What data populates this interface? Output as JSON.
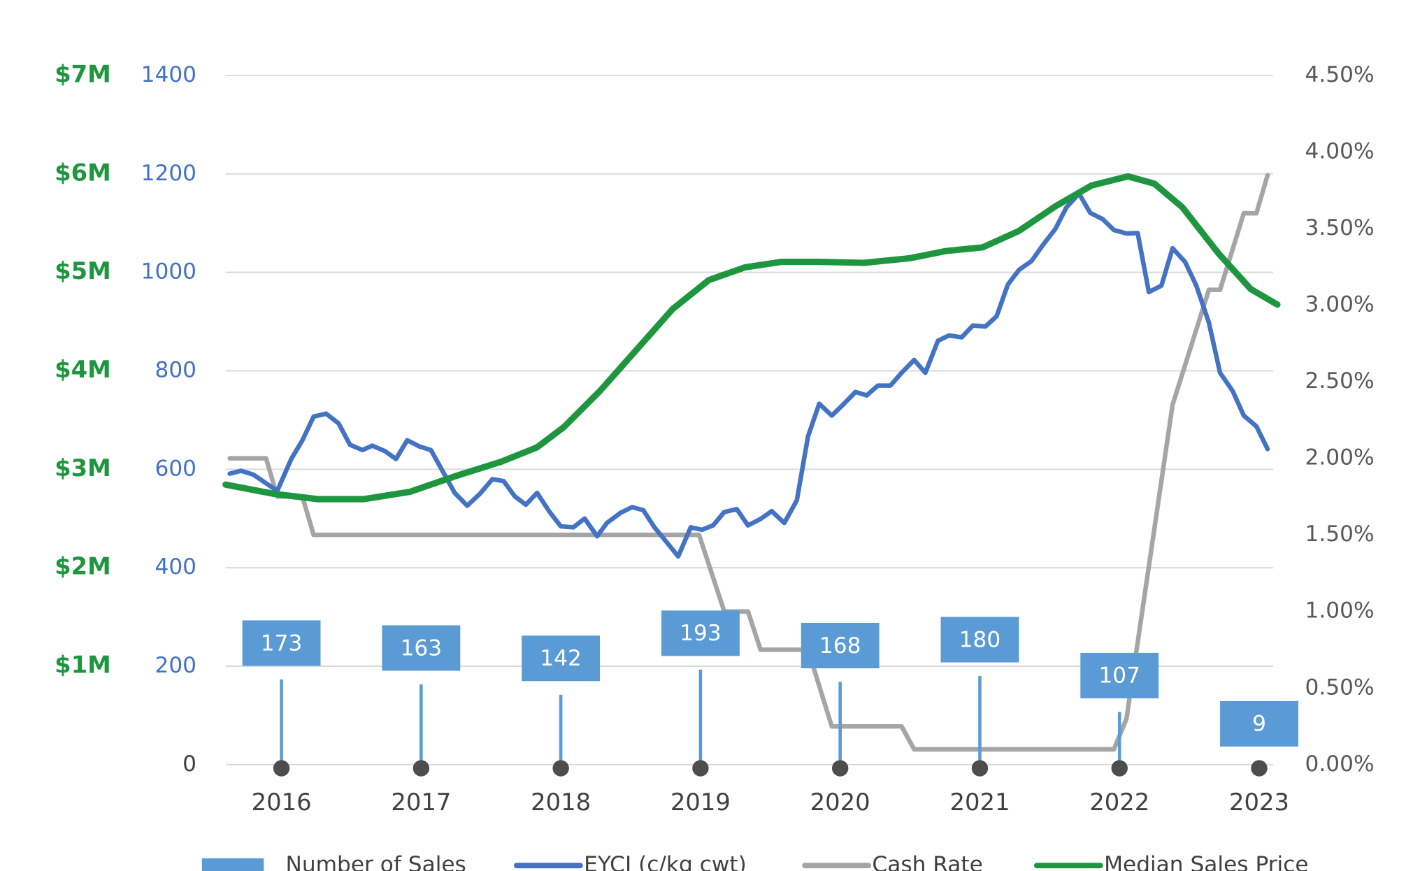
{
  "chart_data": {
    "type": "combo",
    "xlim": [
      2015.6,
      2023.1
    ],
    "xticks": [
      2016,
      2017,
      2018,
      2019,
      2020,
      2021,
      2022,
      2023
    ],
    "ylim": [
      0,
      1400
    ],
    "yticks": [
      0,
      200,
      400,
      600,
      800,
      1000,
      1200,
      1400
    ],
    "y2lim": [
      0,
      4.5
    ],
    "y2ticks": [
      {
        "value": 0,
        "label": "0.00%"
      },
      {
        "value": 0.5,
        "label": "0.50%"
      },
      {
        "value": 1,
        "label": "1.00%"
      },
      {
        "value": 1.5,
        "label": "1.50%"
      },
      {
        "value": 2,
        "label": "2.00%"
      },
      {
        "value": 2.5,
        "label": "2.50%"
      },
      {
        "value": 3,
        "label": "3.00%"
      },
      {
        "value": 3.5,
        "label": "3.50%"
      },
      {
        "value": 4,
        "label": "4.00%"
      },
      {
        "value": 4.5,
        "label": "4.50%"
      }
    ],
    "y3lim": [
      0,
      7000000
    ],
    "y3ticks": [
      {
        "value": 1000000,
        "label": "$1M"
      },
      {
        "value": 2000000,
        "label": "$2M"
      },
      {
        "value": 3000000,
        "label": "$3M"
      },
      {
        "value": 4000000,
        "label": "$4M"
      },
      {
        "value": 5000000,
        "label": "$5M"
      },
      {
        "value": 6000000,
        "label": "$6M"
      },
      {
        "value": 7000000,
        "label": "$7M"
      }
    ],
    "grid": true,
    "legend": "bottom",
    "series": [
      {
        "name": "Number of Sales",
        "type": "lollipop",
        "axis": "y",
        "color": "#5b9bd5",
        "x": [
          2016,
          2017,
          2018,
          2019,
          2020,
          2021,
          2022,
          2023
        ],
        "values": [
          173,
          163,
          142,
          193,
          168,
          180,
          107,
          9
        ]
      },
      {
        "name": "EYCI (c/kg cwt)",
        "type": "line",
        "axis": "y",
        "color": "#4472c4",
        "x": [
          2015.63,
          2015.71,
          2015.8,
          2015.97,
          2016.07,
          2016.15,
          2016.23,
          2016.32,
          2016.41,
          2016.49,
          2016.58,
          2016.65,
          2016.74,
          2016.82,
          2016.9,
          2016.99,
          2017.07,
          2017.16,
          2017.24,
          2017.33,
          2017.42,
          2017.51,
          2017.59,
          2017.67,
          2017.75,
          2017.83,
          2017.92,
          2018.0,
          2018.09,
          2018.17,
          2018.26,
          2018.33,
          2018.43,
          2018.51,
          2018.59,
          2018.67,
          2018.76,
          2018.84,
          2018.93,
          2019.01,
          2019.09,
          2019.17,
          2019.26,
          2019.34,
          2019.43,
          2019.51,
          2019.6,
          2019.69,
          2019.77,
          2019.85,
          2019.94,
          2020.02,
          2020.11,
          2020.19,
          2020.27,
          2020.36,
          2020.44,
          2020.53,
          2020.61,
          2020.7,
          2020.78,
          2020.87,
          2020.95,
          2021.04,
          2021.12,
          2021.2,
          2021.28,
          2021.37,
          2021.45,
          2021.54,
          2021.62,
          2021.71,
          2021.79,
          2021.88,
          2021.96,
          2022.05,
          2022.13,
          2022.21,
          2022.3,
          2022.38,
          2022.47,
          2022.55,
          2022.64,
          2022.72,
          2022.81,
          2022.89,
          2022.98,
          2023.06
        ],
        "values": [
          591,
          597,
          589,
          556,
          621,
          659,
          707,
          713,
          693,
          650,
          639,
          648,
          637,
          621,
          659,
          646,
          639,
          593,
          552,
          526,
          550,
          580,
          576,
          545,
          528,
          552,
          513,
          484,
          482,
          500,
          464,
          491,
          512,
          523,
          517,
          482,
          451,
          423,
          482,
          477,
          486,
          513,
          519,
          486,
          499,
          515,
          491,
          537,
          667,
          733,
          709,
          731,
          757,
          750,
          770,
          770,
          796,
          822,
          796,
          861,
          872,
          868,
          892,
          890,
          911,
          975,
          1005,
          1023,
          1055,
          1088,
          1132,
          1160,
          1121,
          1108,
          1086,
          1079,
          1080,
          960,
          973,
          1049,
          1021,
          973,
          898,
          796,
          759,
          709,
          687,
          641
        ]
      },
      {
        "name": "Cash Rate",
        "type": "line",
        "axis": "y2",
        "color": "#a5a5a5",
        "x": [
          2015.63,
          2015.89,
          2015.97,
          2016.15,
          2016.23,
          2018.99,
          2019.17,
          2019.34,
          2019.43,
          2019.77,
          2019.94,
          2020.44,
          2020.53,
          2021.96,
          2022.05,
          2022.38,
          2022.64,
          2022.72,
          2022.89,
          2022.98,
          2023.06
        ],
        "values": [
          2.0,
          2.0,
          1.75,
          1.75,
          1.5,
          1.5,
          1.0,
          1.0,
          0.75,
          0.75,
          0.25,
          0.25,
          0.1,
          0.1,
          0.3,
          2.35,
          3.1,
          3.1,
          3.6,
          3.6,
          3.85
        ]
      },
      {
        "name": "Median Sales Price",
        "type": "line",
        "axis": "y3",
        "color": "#1e9640",
        "x": [
          2015.6,
          2015.94,
          2016.26,
          2016.59,
          2016.92,
          2017.24,
          2017.57,
          2017.83,
          2018.02,
          2018.28,
          2018.54,
          2018.8,
          2019.06,
          2019.32,
          2019.58,
          2019.84,
          2020.17,
          2020.5,
          2020.76,
          2021.02,
          2021.28,
          2021.54,
          2021.8,
          2022.06,
          2022.25,
          2022.45,
          2022.71,
          2022.94,
          2023.13
        ],
        "values": [
          2844000,
          2752000,
          2697000,
          2697000,
          2771000,
          2927000,
          3075000,
          3223000,
          3426000,
          3795000,
          4211000,
          4627000,
          4922000,
          5051000,
          5107000,
          5107000,
          5097000,
          5144000,
          5218000,
          5254000,
          5421000,
          5670000,
          5883000,
          5975000,
          5901000,
          5661000,
          5190000,
          4830000,
          4673000
        ]
      }
    ]
  }
}
